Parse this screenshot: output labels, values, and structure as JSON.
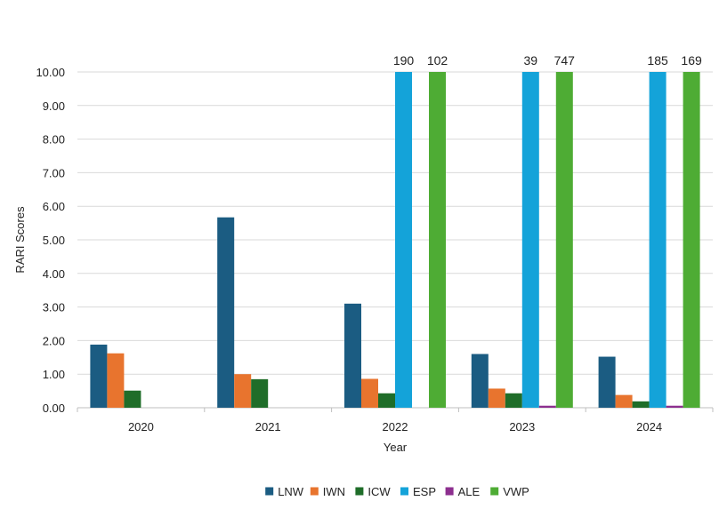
{
  "chart_data": {
    "type": "bar",
    "title": "",
    "xlabel": "Year",
    "ylabel": "RARI Scores",
    "ylim": [
      0,
      10
    ],
    "yticks": [
      "0.00",
      "1.00",
      "2.00",
      "3.00",
      "4.00",
      "5.00",
      "6.00",
      "7.00",
      "8.00",
      "9.00",
      "10.00"
    ],
    "categories": [
      "2020",
      "2021",
      "2022",
      "2023",
      "2024"
    ],
    "grid": "horizontal",
    "legend_position": "bottom",
    "clip_note_values_above_axis_max_are_labeled": true,
    "series": [
      {
        "name": "LNW",
        "color": "#1b5c82",
        "values": [
          1.88,
          5.67,
          3.1,
          1.6,
          1.52
        ]
      },
      {
        "name": "IWN",
        "color": "#e8742e",
        "values": [
          1.62,
          1.0,
          0.86,
          0.57,
          0.38
        ]
      },
      {
        "name": "ICW",
        "color": "#1f6d29",
        "values": [
          0.51,
          0.85,
          0.43,
          0.43,
          0.19
        ]
      },
      {
        "name": "ESP",
        "color": "#14a3d9",
        "values": [
          null,
          null,
          190,
          39,
          185
        ]
      },
      {
        "name": "ALE",
        "color": "#8d2f8f",
        "values": [
          null,
          null,
          null,
          0.06,
          0.06
        ]
      },
      {
        "name": "VWP",
        "color": "#4eac34",
        "values": [
          null,
          null,
          102,
          747,
          169
        ]
      }
    ]
  }
}
